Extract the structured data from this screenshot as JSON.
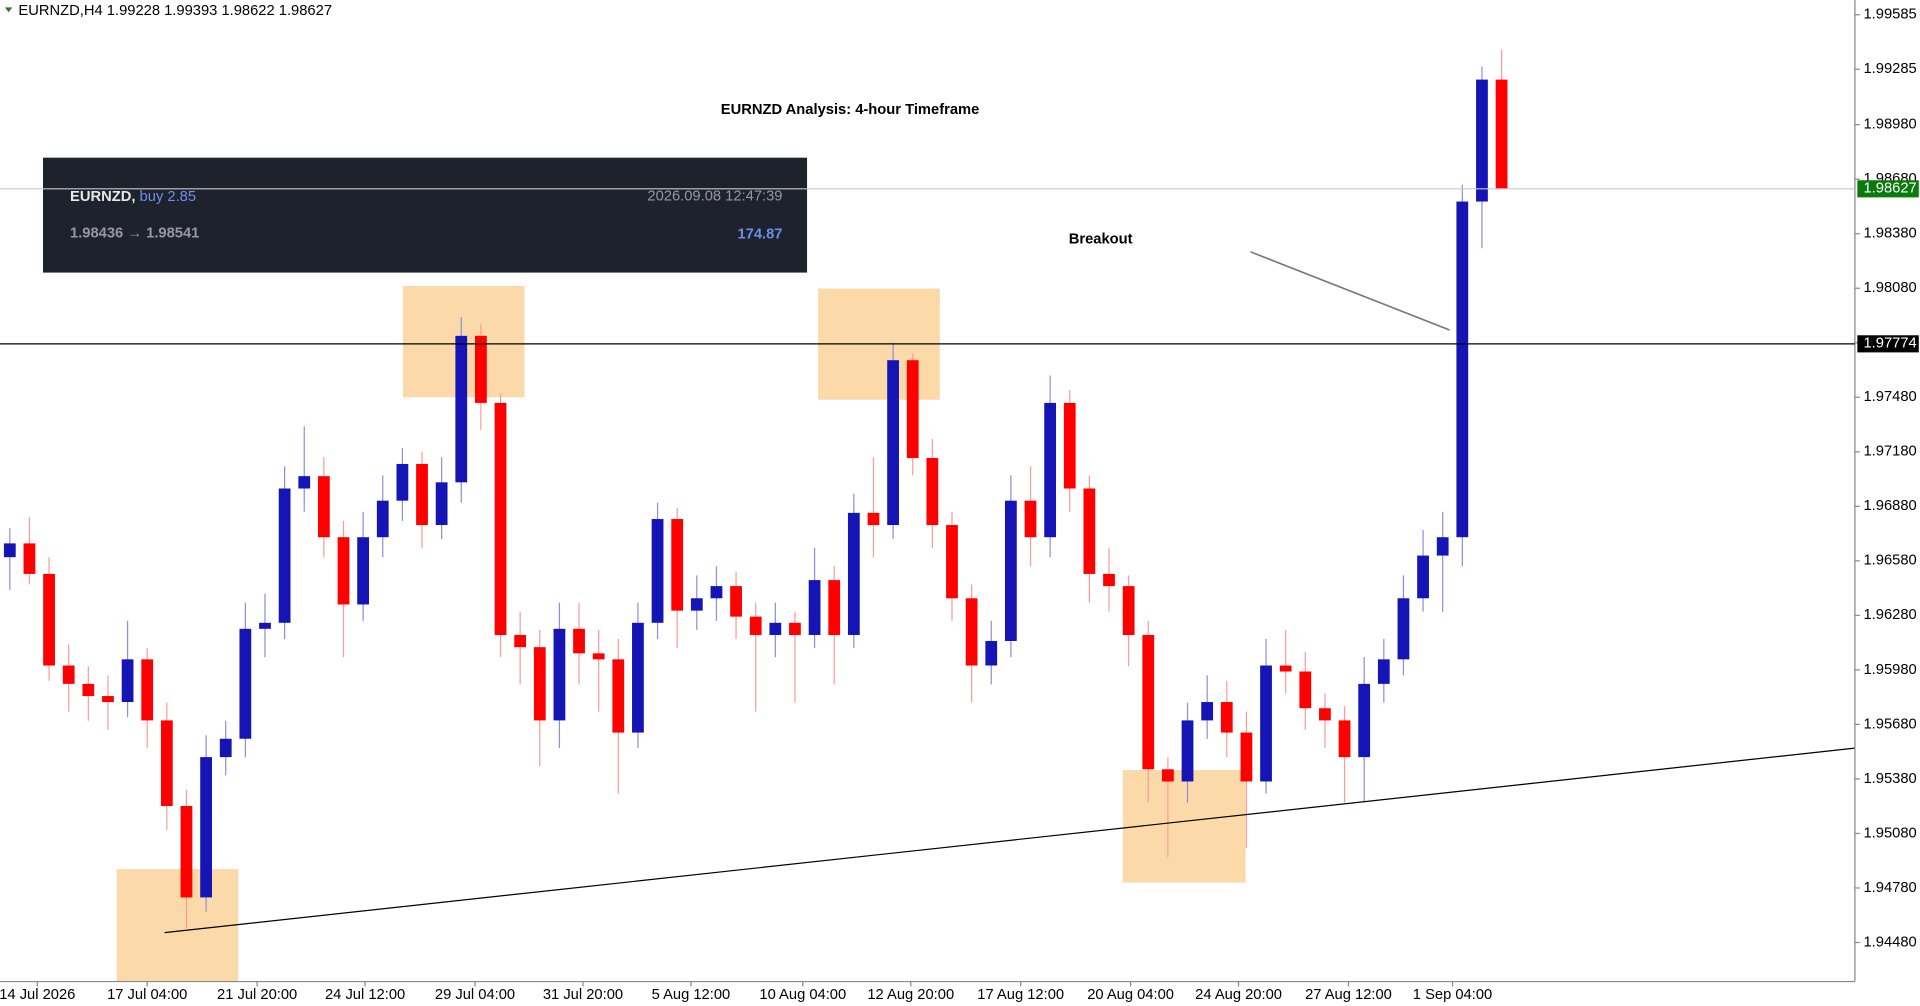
{
  "chart_data": {
    "type": "candlestick",
    "symbol": "EURNZD,H4",
    "title": "EURNZD Analysis: 4-hour Timeframe",
    "annotation": "Breakout",
    "bull_color": "#1515b5",
    "bear_color": "#ff0000",
    "ylim": [
      1.94265,
      1.99666
    ],
    "xlim": [
      -0.5,
      94
    ],
    "yticks": [
      {
        "value": 1.9448,
        "label": "1.94480"
      },
      {
        "value": 1.9478,
        "label": "1.94780"
      },
      {
        "value": 1.9508,
        "label": "1.95080"
      },
      {
        "value": 1.9538,
        "label": "1.95380"
      },
      {
        "value": 1.9568,
        "label": "1.95680"
      },
      {
        "value": 1.9598,
        "label": "1.95980"
      },
      {
        "value": 1.9628,
        "label": "1.96280"
      },
      {
        "value": 1.9658,
        "label": "1.96580"
      },
      {
        "value": 1.9688,
        "label": "1.96880"
      },
      {
        "value": 1.9718,
        "label": "1.97180"
      },
      {
        "value": 1.9748,
        "label": "1.97480"
      },
      {
        "value": 1.9778,
        "label": "1.97780"
      },
      {
        "value": 1.9808,
        "label": "1.98080"
      },
      {
        "value": 1.9838,
        "label": "1.98380"
      },
      {
        "value": 1.9868,
        "label": "1.98680"
      },
      {
        "value": 1.9898,
        "label": "1.98980"
      },
      {
        "value": 1.99285,
        "label": "1.99285"
      },
      {
        "value": 1.99585,
        "label": "1.99585"
      }
    ],
    "xticks": [
      {
        "value": 1.4,
        "label": "14 Jul 2026"
      },
      {
        "value": 7.0,
        "label": "17 Jul 04:00"
      },
      {
        "value": 12.6,
        "label": "21 Jul 20:00"
      },
      {
        "value": 18.1,
        "label": "24 Jul 12:00"
      },
      {
        "value": 23.7,
        "label": "29 Jul 04:00"
      },
      {
        "value": 29.2,
        "label": "31 Jul 20:00"
      },
      {
        "value": 34.7,
        "label": "5 Aug 12:00"
      },
      {
        "value": 40.4,
        "label": "10 Aug 04:00"
      },
      {
        "value": 45.9,
        "label": "12 Aug 20:00"
      },
      {
        "value": 51.5,
        "label": "17 Aug 12:00"
      },
      {
        "value": 57.1,
        "label": "20 Aug 04:00"
      },
      {
        "value": 62.6,
        "label": "24 Aug 20:00"
      },
      {
        "value": 68.2,
        "label": "27 Aug 12:00"
      },
      {
        "value": 73.5,
        "label": "1 Sep 04:00"
      }
    ],
    "resistance": 1.97774,
    "ohlc": [
      [
        1.966,
        1.9676,
        1.9642,
        1.96676
      ],
      [
        1.96676,
        1.9682,
        1.9645,
        1.96508
      ],
      [
        1.96508,
        1.966,
        1.9592,
        1.96004
      ],
      [
        1.96004,
        1.9612,
        1.9575,
        1.95903
      ],
      [
        1.95903,
        1.96,
        1.957,
        1.95836
      ],
      [
        1.95836,
        1.9595,
        1.9565,
        1.95803
      ],
      [
        1.95803,
        1.9625,
        1.9572,
        1.96038
      ],
      [
        1.96038,
        1.961,
        1.9555,
        1.95702
      ],
      [
        1.95702,
        1.958,
        1.951,
        1.95231
      ],
      [
        1.95231,
        1.9532,
        1.9456,
        1.94728
      ],
      [
        1.94728,
        1.9562,
        1.9465,
        1.955
      ],
      [
        1.955,
        1.957,
        1.954,
        1.95601
      ],
      [
        1.95601,
        1.9635,
        1.955,
        1.96206
      ],
      [
        1.96206,
        1.964,
        1.9605,
        1.96239
      ],
      [
        1.96239,
        1.971,
        1.9615,
        1.96978
      ],
      [
        1.96978,
        1.9732,
        1.9685,
        1.97046
      ],
      [
        1.97046,
        1.9715,
        1.966,
        1.9671
      ],
      [
        1.9671,
        1.968,
        1.9605,
        1.9634
      ],
      [
        1.9634,
        1.9685,
        1.9625,
        1.9671
      ],
      [
        1.9671,
        1.9705,
        1.966,
        1.96911
      ],
      [
        1.96911,
        1.972,
        1.968,
        1.97113
      ],
      [
        1.97113,
        1.9718,
        1.9665,
        1.96777
      ],
      [
        1.96777,
        1.9715,
        1.967,
        1.97012
      ],
      [
        1.97012,
        1.9792,
        1.969,
        1.97818
      ],
      [
        1.97818,
        1.9788,
        1.973,
        1.97449
      ],
      [
        1.97449,
        1.975,
        1.9605,
        1.96172
      ],
      [
        1.96172,
        1.963,
        1.959,
        1.96105
      ],
      [
        1.96105,
        1.962,
        1.9545,
        1.95702
      ],
      [
        1.95702,
        1.9635,
        1.9555,
        1.96206
      ],
      [
        1.96206,
        1.9635,
        1.959,
        1.96071
      ],
      [
        1.96071,
        1.962,
        1.9575,
        1.96038
      ],
      [
        1.96038,
        1.9615,
        1.953,
        1.95635
      ],
      [
        1.95635,
        1.9635,
        1.9555,
        1.96239
      ],
      [
        1.96239,
        1.969,
        1.9615,
        1.9681
      ],
      [
        1.9681,
        1.9687,
        1.961,
        1.96306
      ],
      [
        1.96306,
        1.965,
        1.962,
        1.96374
      ],
      [
        1.96374,
        1.9655,
        1.9625,
        1.96441
      ],
      [
        1.96441,
        1.9652,
        1.9615,
        1.96273
      ],
      [
        1.96273,
        1.9635,
        1.9575,
        1.96172
      ],
      [
        1.96172,
        1.9635,
        1.9605,
        1.96239
      ],
      [
        1.96239,
        1.963,
        1.958,
        1.96172
      ],
      [
        1.96172,
        1.9665,
        1.961,
        1.96474
      ],
      [
        1.96474,
        1.9655,
        1.959,
        1.96172
      ],
      [
        1.96172,
        1.9695,
        1.961,
        1.96844
      ],
      [
        1.96844,
        1.9715,
        1.966,
        1.96777
      ],
      [
        1.96777,
        1.9778,
        1.967,
        1.97684
      ],
      [
        1.97684,
        1.9772,
        1.9705,
        1.97146
      ],
      [
        1.97146,
        1.9725,
        1.9665,
        1.96777
      ],
      [
        1.96777,
        1.9685,
        1.9625,
        1.96374
      ],
      [
        1.96374,
        1.9645,
        1.958,
        1.96004
      ],
      [
        1.96004,
        1.9625,
        1.959,
        1.96139
      ],
      [
        1.96139,
        1.9705,
        1.9605,
        1.96911
      ],
      [
        1.96911,
        1.971,
        1.9655,
        1.9671
      ],
      [
        1.9671,
        1.976,
        1.966,
        1.97449
      ],
      [
        1.97449,
        1.9752,
        1.9685,
        1.96978
      ],
      [
        1.96978,
        1.9705,
        1.9635,
        1.96508
      ],
      [
        1.96508,
        1.9665,
        1.963,
        1.96441
      ],
      [
        1.96441,
        1.965,
        1.96,
        1.96172
      ],
      [
        1.96172,
        1.9625,
        1.9525,
        1.95433
      ],
      [
        1.95433,
        1.955,
        1.9495,
        1.95366
      ],
      [
        1.95366,
        1.958,
        1.9525,
        1.95702
      ],
      [
        1.95702,
        1.9595,
        1.956,
        1.95803
      ],
      [
        1.95803,
        1.9592,
        1.955,
        1.95635
      ],
      [
        1.95635,
        1.9575,
        1.95,
        1.95366
      ],
      [
        1.95366,
        1.9615,
        1.953,
        1.96004
      ],
      [
        1.96004,
        1.962,
        1.9585,
        1.95971
      ],
      [
        1.95971,
        1.9608,
        1.9565,
        1.95769
      ],
      [
        1.95769,
        1.9585,
        1.9555,
        1.95702
      ],
      [
        1.95702,
        1.9578,
        1.9525,
        1.955
      ],
      [
        1.955,
        1.9605,
        1.9525,
        1.95903
      ],
      [
        1.95903,
        1.9615,
        1.958,
        1.96038
      ],
      [
        1.96038,
        1.965,
        1.9595,
        1.96374
      ],
      [
        1.96374,
        1.9675,
        1.963,
        1.96609
      ],
      [
        1.96609,
        1.9685,
        1.963,
        1.9671
      ],
      [
        1.9671,
        1.9865,
        1.9655,
        1.98557
      ],
      [
        1.98557,
        1.993,
        1.983,
        1.99228
      ],
      [
        1.99228,
        1.99393,
        1.98622,
        1.98627
      ]
    ],
    "info_box": {
      "symbol": "EURNZD,",
      "order": "buy 2.85",
      "time": "2026.09.08 12:47:39",
      "prices": "1.98436 → 1.98541",
      "profit": "174.87"
    }
  }
}
